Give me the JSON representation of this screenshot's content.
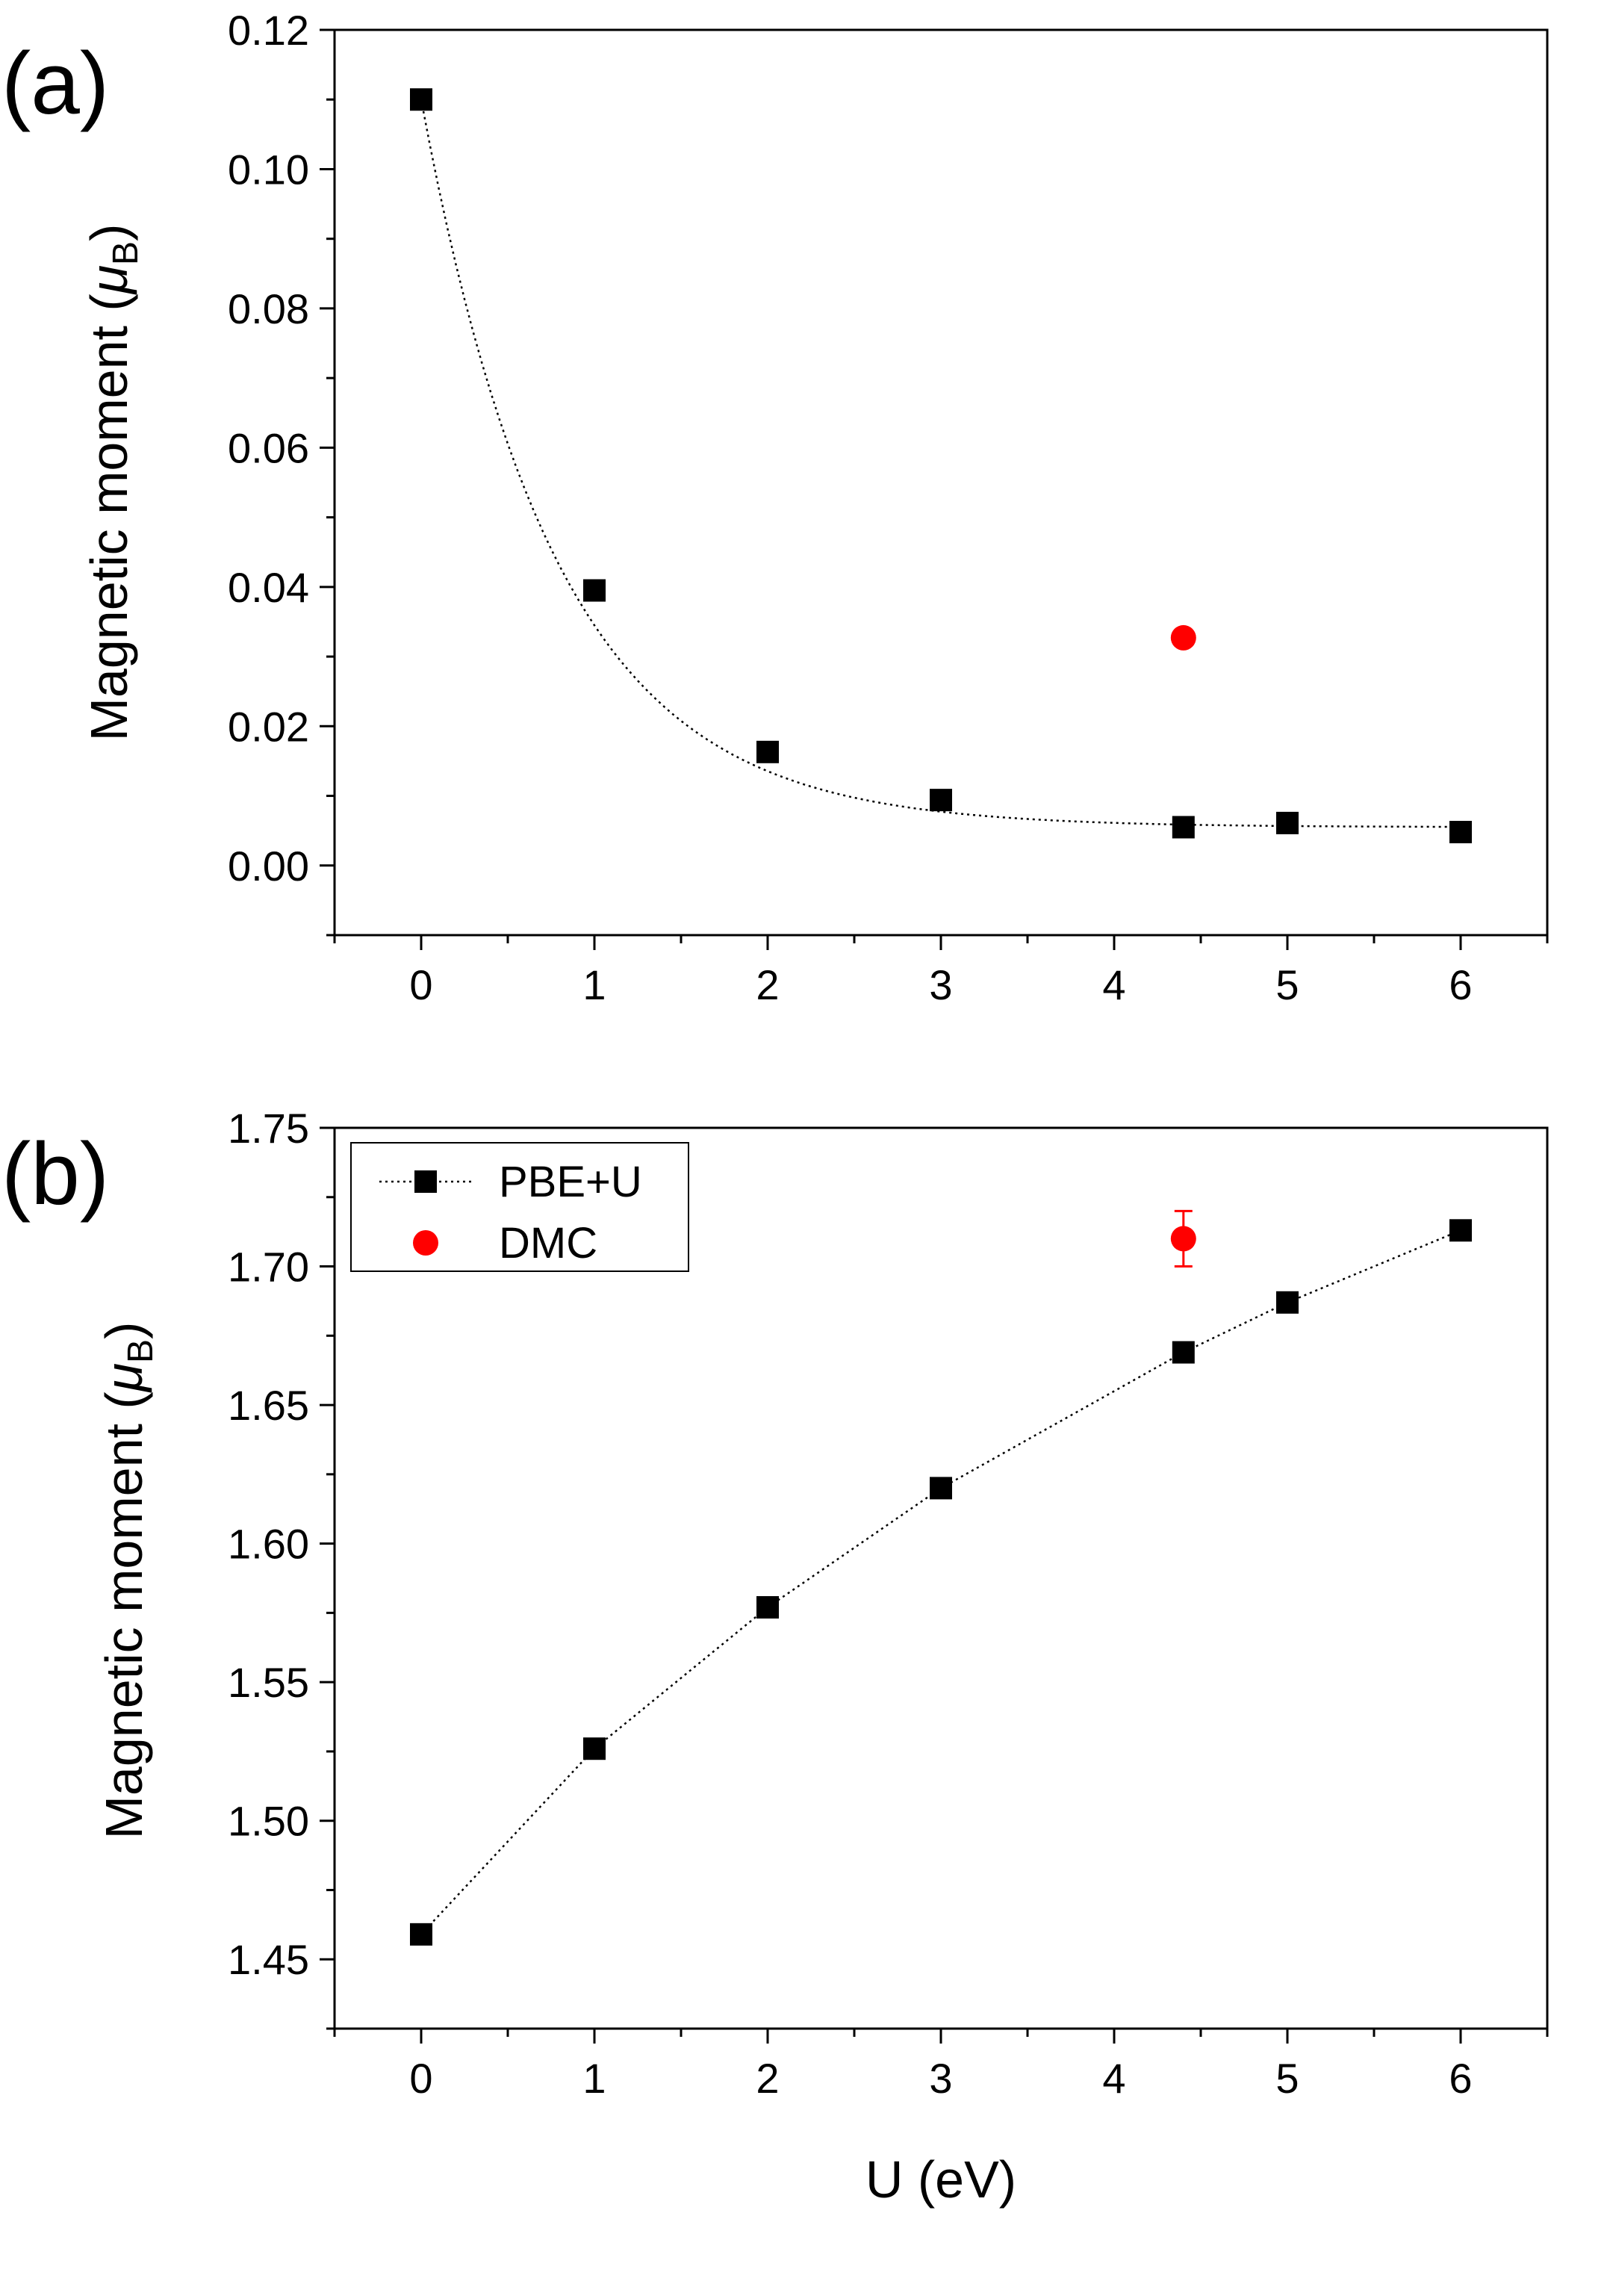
{
  "chart_data": [
    {
      "type": "scatter",
      "panel_label": "(a)",
      "xlabel": "",
      "ylabel": "Magnetic moment (",
      "ylabel_mu": "μ",
      "ylabel_sub": "B",
      "ylabel_close": ")",
      "xlim": [
        -0.5,
        6.5
      ],
      "ylim": [
        -0.01,
        0.12
      ],
      "xticks": [
        0,
        1,
        2,
        3,
        4,
        5,
        6
      ],
      "xtick_labels": [
        "0",
        "1",
        "2",
        "3",
        "4",
        "5",
        "6"
      ],
      "yticks": [
        0.0,
        0.02,
        0.04,
        0.06,
        0.08,
        0.1,
        0.12
      ],
      "ytick_labels": [
        "0.00",
        "0.02",
        "0.04",
        "0.06",
        "0.08",
        "0.10",
        "0.12"
      ],
      "legend": null,
      "series": [
        {
          "name": "PBE+U",
          "marker": "square",
          "color": "#000000",
          "line": "dotted-fit",
          "x": [
            0,
            1,
            2,
            3,
            4.4,
            5,
            6
          ],
          "y": [
            0.11,
            0.0395,
            0.0163,
            0.0094,
            0.0055,
            0.0061,
            0.0048
          ]
        },
        {
          "name": "DMC",
          "marker": "circle",
          "color": "#ff0000",
          "x": [
            4.4
          ],
          "y": [
            0.0327
          ]
        }
      ]
    },
    {
      "type": "scatter",
      "panel_label": "(b)",
      "xlabel": "U (eV)",
      "ylabel": "Magnetic moment (",
      "ylabel_mu": "μ",
      "ylabel_sub": "B",
      "ylabel_close": ")",
      "xlim": [
        -0.5,
        6.5
      ],
      "ylim": [
        1.425,
        1.75
      ],
      "xticks": [
        0,
        1,
        2,
        3,
        4,
        5,
        6
      ],
      "xtick_labels": [
        "0",
        "1",
        "2",
        "3",
        "4",
        "5",
        "6"
      ],
      "yticks": [
        1.45,
        1.5,
        1.55,
        1.6,
        1.65,
        1.7,
        1.75
      ],
      "ytick_labels": [
        "1.45",
        "1.50",
        "1.55",
        "1.60",
        "1.65",
        "1.70",
        "1.75"
      ],
      "legend": {
        "position": "top-left",
        "entries": [
          "PBE+U",
          "DMC"
        ]
      },
      "series": [
        {
          "name": "PBE+U",
          "marker": "square",
          "color": "#000000",
          "line": "dotted",
          "x": [
            0,
            1,
            2,
            3,
            4.4,
            5,
            6
          ],
          "y": [
            1.459,
            1.526,
            1.577,
            1.62,
            1.669,
            1.687,
            1.713
          ]
        },
        {
          "name": "DMC",
          "marker": "circle",
          "color": "#ff0000",
          "x": [
            4.4
          ],
          "y": [
            1.71
          ],
          "yerr": [
            0.01
          ]
        }
      ]
    }
  ]
}
